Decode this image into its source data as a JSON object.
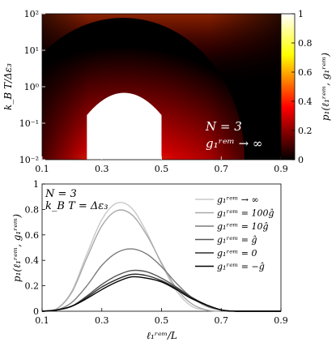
{
  "chart_data": [
    {
      "type": "heatmap",
      "xlabel": "",
      "ylabel": "k_B T/Δε₃",
      "xlim": [
        0.1,
        0.9
      ],
      "ylim": [
        0.01,
        100
      ],
      "yscale": "log",
      "x_ticks": [
        "0.1",
        "0.3",
        "0.5",
        "0.7",
        "0.9"
      ],
      "y_ticks": [
        "10⁻²",
        "10⁻¹",
        "10⁰",
        "10¹",
        "10²"
      ],
      "y_tick_values": [
        0.01,
        0.1,
        1,
        10,
        100
      ],
      "colormap": "hot",
      "colorbar": {
        "label": "p₁(ℓ₁ʳᵉᵐ, g₁ʳᵉᵐ)",
        "range": [
          0,
          1
        ],
        "ticks": [
          "0",
          "0.2",
          "0.4",
          "0.6",
          "0.8",
          "1"
        ],
        "tick_values": [
          0,
          0.2,
          0.4,
          0.6,
          0.8,
          1
        ]
      },
      "annotation": [
        "N = 3",
        "g₁ʳᵉᵐ → ∞"
      ],
      "region_full_probability_x": [
        0.25,
        0.5
      ],
      "grid": false
    },
    {
      "type": "line",
      "xlabel": "ℓ₁ʳᵉᵐ/L",
      "ylabel": "p₁(ℓ₁ʳᵉᵐ, g₁ʳᵉᵐ)",
      "xlim": [
        0.1,
        0.9
      ],
      "ylim": [
        0,
        1
      ],
      "x_ticks": [
        "0.1",
        "0.3",
        "0.5",
        "0.7",
        "0.9"
      ],
      "x_tick_values": [
        0.1,
        0.3,
        0.5,
        0.7,
        0.9
      ],
      "y_ticks": [
        "0",
        "0.2",
        "0.4",
        "0.6",
        "0.8",
        "1"
      ],
      "y_tick_values": [
        0,
        0.2,
        0.4,
        0.6,
        0.8,
        1
      ],
      "annotation": [
        "N = 3",
        "k_B T = Δε₃"
      ],
      "legend_position": "top-right",
      "grid": false,
      "x": [
        0.1,
        0.15,
        0.2,
        0.25,
        0.3,
        0.35,
        0.4,
        0.45,
        0.5,
        0.55,
        0.6,
        0.65,
        0.7,
        0.75,
        0.8,
        0.85,
        0.9
      ],
      "series": [
        {
          "name": "g₁ʳᵉᵐ → ∞",
          "color": "#c8c8c8",
          "values": [
            0,
            0.02,
            0.16,
            0.45,
            0.72,
            0.85,
            0.81,
            0.62,
            0.37,
            0.16,
            0.04,
            0.01,
            0,
            0,
            0,
            0,
            0
          ]
        },
        {
          "name": "g₁ʳᵉᵐ = 100ĝ",
          "color": "#a8a8a8",
          "values": [
            0,
            0.02,
            0.15,
            0.42,
            0.67,
            0.79,
            0.76,
            0.6,
            0.38,
            0.18,
            0.06,
            0.01,
            0,
            0,
            0,
            0,
            0
          ]
        },
        {
          "name": "g₁ʳᵉᵐ = 10ĝ",
          "color": "#7c7c7c",
          "values": [
            0,
            0.01,
            0.07,
            0.2,
            0.36,
            0.46,
            0.49,
            0.45,
            0.35,
            0.22,
            0.11,
            0.04,
            0.01,
            0,
            0,
            0,
            0
          ]
        },
        {
          "name": "g₁ʳᵉᵐ = ĝ",
          "color": "#555555",
          "values": [
            0,
            0.01,
            0.04,
            0.12,
            0.21,
            0.28,
            0.32,
            0.31,
            0.26,
            0.19,
            0.11,
            0.05,
            0.01,
            0,
            0,
            0,
            0
          ]
        },
        {
          "name": "g₁ʳᵉᵐ = 0",
          "color": "#2e2e2e",
          "values": [
            0,
            0.01,
            0.04,
            0.11,
            0.19,
            0.25,
            0.29,
            0.28,
            0.24,
            0.18,
            0.11,
            0.05,
            0.01,
            0,
            0,
            0,
            0
          ]
        },
        {
          "name": "g₁ʳᵉᵐ = −ĝ",
          "color": "#000000",
          "values": [
            0,
            0.01,
            0.04,
            0.1,
            0.17,
            0.23,
            0.27,
            0.26,
            0.23,
            0.17,
            0.1,
            0.05,
            0.01,
            0,
            0,
            0,
            0
          ]
        }
      ]
    }
  ]
}
